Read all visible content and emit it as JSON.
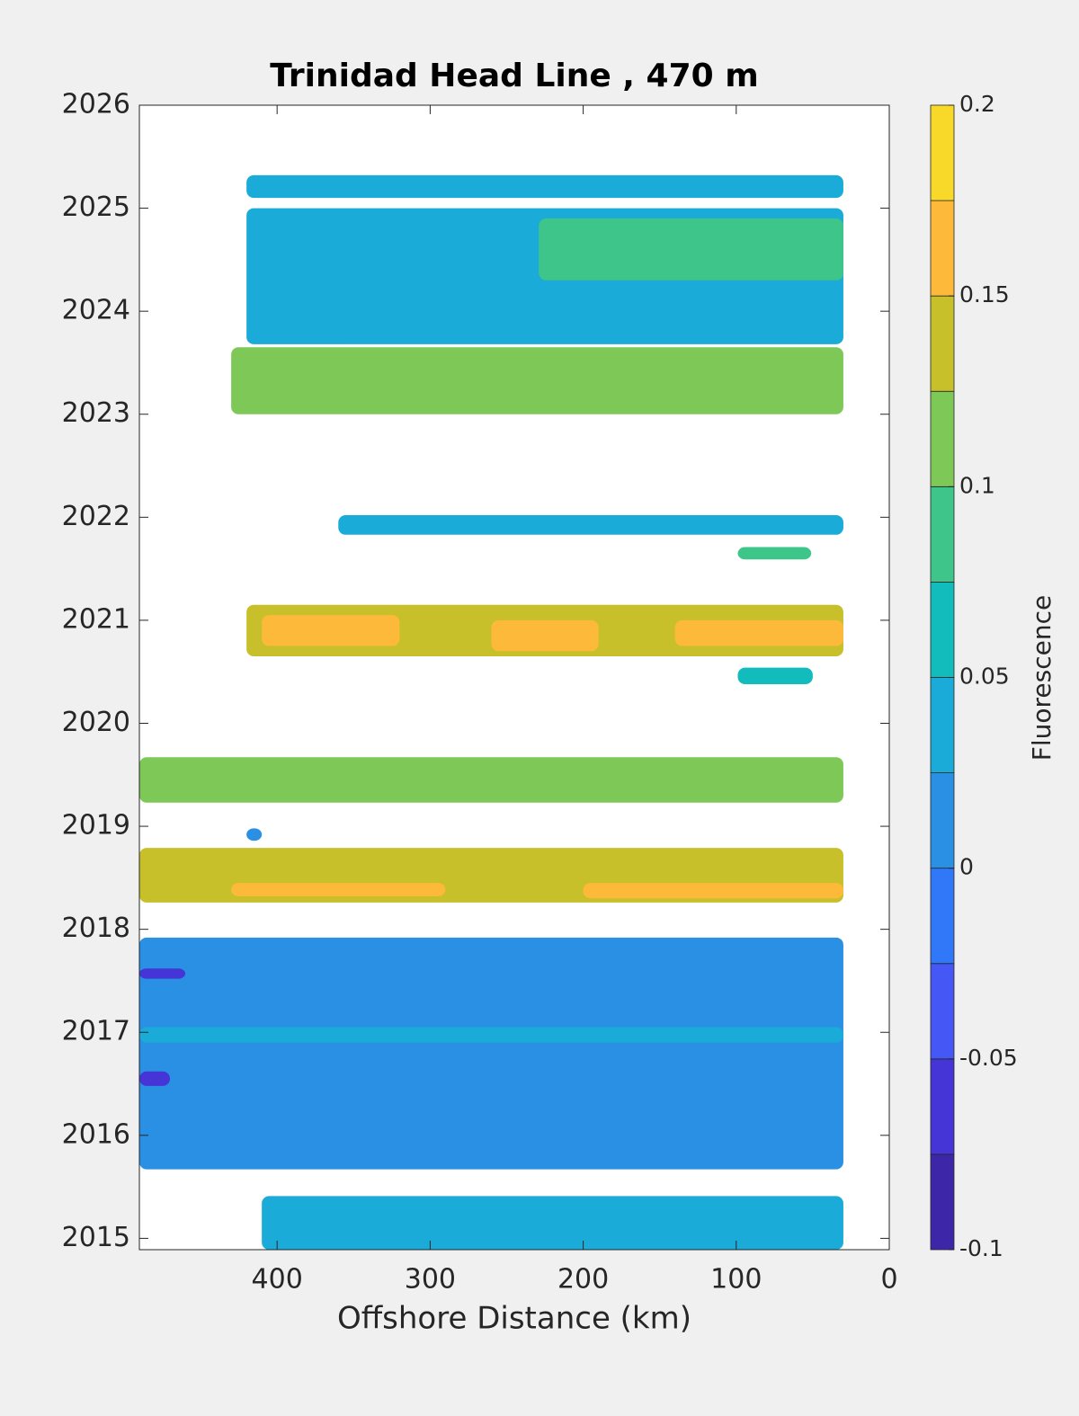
{
  "chart_data": {
    "type": "contour",
    "title": "Trinidad Head Line , 470 m",
    "xlabel": "Offshore Distance (km)",
    "colorbar_label": "Fluorescence",
    "xlim": [
      490,
      0
    ],
    "xticks": [
      0,
      100,
      200,
      300,
      400
    ],
    "ylim": [
      2014.89,
      2026
    ],
    "yticks": [
      2015,
      2016,
      2017,
      2018,
      2019,
      2020,
      2021,
      2022,
      2023,
      2024,
      2025,
      2026
    ],
    "clim": [
      -0.1,
      0.2
    ],
    "cticks": [
      -0.1,
      -0.05,
      0,
      0.05,
      0.1,
      0.15,
      0.2
    ],
    "levels": [
      -0.1,
      -0.075,
      -0.05,
      -0.025,
      0,
      0.025,
      0.05,
      0.075,
      0.1,
      0.125,
      0.15,
      0.175,
      0.2
    ],
    "colors": [
      "#3e26a8",
      "#4535d6",
      "#4558f5",
      "#3078f7",
      "#2a90e4",
      "#1aabd8",
      "#13bcbc",
      "#3ec58a",
      "#7dc857",
      "#c8c02a",
      "#fdb93a",
      "#f8d92a"
    ],
    "patches": [
      {
        "x": [
          420,
          30
        ],
        "y": [
          2025.1,
          2025.32
        ],
        "value": 0.04
      },
      {
        "x": [
          420,
          30
        ],
        "y": [
          2023.68,
          2025.0
        ],
        "value": 0.04
      },
      {
        "x": [
          229,
          30
        ],
        "y": [
          2024.3,
          2024.9
        ],
        "value": 0.09
      },
      {
        "x": [
          430,
          30
        ],
        "y": [
          2023.0,
          2023.65
        ],
        "value": 0.11
      },
      {
        "x": [
          360,
          30
        ],
        "y": [
          2021.83,
          2022.02
        ],
        "value": 0.04
      },
      {
        "x": [
          99,
          51
        ],
        "y": [
          2021.59,
          2021.71
        ],
        "value": 0.09
      },
      {
        "x": [
          420,
          30
        ],
        "y": [
          2020.65,
          2021.15
        ],
        "value": 0.14
      },
      {
        "x": [
          410,
          320
        ],
        "y": [
          2020.75,
          2021.05
        ],
        "value": 0.16
      },
      {
        "x": [
          260,
          190
        ],
        "y": [
          2020.7,
          2021.0
        ],
        "value": 0.16
      },
      {
        "x": [
          140,
          30
        ],
        "y": [
          2020.75,
          2021.0
        ],
        "value": 0.16
      },
      {
        "x": [
          99,
          50
        ],
        "y": [
          2020.38,
          2020.54
        ],
        "value": 0.07
      },
      {
        "x": [
          490,
          30
        ],
        "y": [
          2019.23,
          2019.67
        ],
        "value": 0.11
      },
      {
        "x": [
          420,
          410
        ],
        "y": [
          2018.86,
          2018.98
        ],
        "value": 0.01
      },
      {
        "x": [
          490,
          30
        ],
        "y": [
          2018.26,
          2018.79
        ],
        "value": 0.13
      },
      {
        "x": [
          430,
          290
        ],
        "y": [
          2018.32,
          2018.45
        ],
        "value": 0.16
      },
      {
        "x": [
          200,
          30
        ],
        "y": [
          2018.3,
          2018.45
        ],
        "value": 0.16
      },
      {
        "x": [
          490,
          30
        ],
        "y": [
          2015.67,
          2017.92
        ],
        "value": 0.01
      },
      {
        "x": [
          490,
          470
        ],
        "y": [
          2016.48,
          2016.62
        ],
        "value": -0.06
      },
      {
        "x": [
          490,
          460
        ],
        "y": [
          2017.52,
          2017.62
        ],
        "value": -0.06
      },
      {
        "x": [
          490,
          30
        ],
        "y": [
          2016.9,
          2017.05
        ],
        "value": 0.04
      },
      {
        "x": [
          410,
          30
        ],
        "y": [
          2014.89,
          2015.41
        ],
        "value": 0.04
      }
    ]
  }
}
